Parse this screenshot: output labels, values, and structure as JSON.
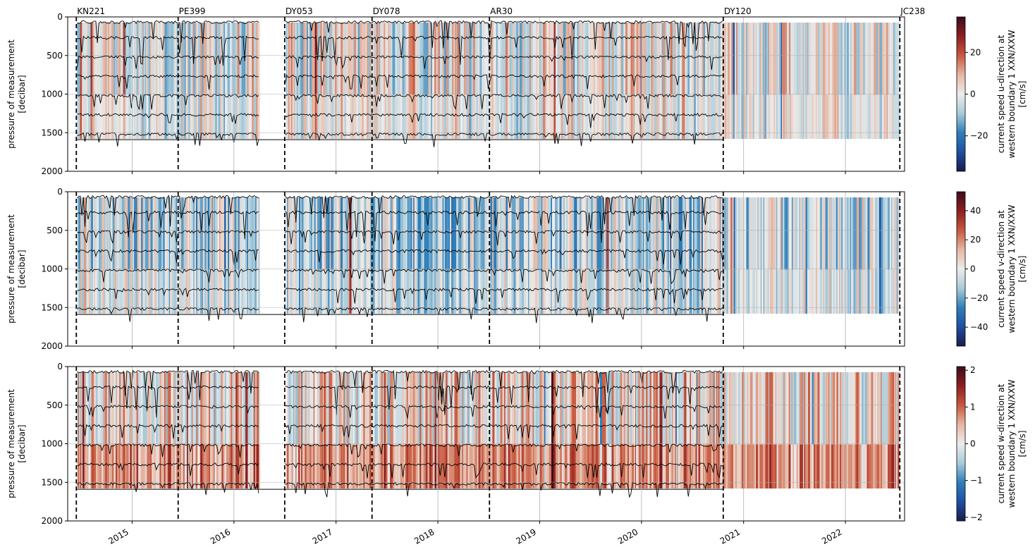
{
  "figure": {
    "x_ticks": [
      "2015",
      "2016",
      "2017",
      "2018",
      "2019",
      "2020",
      "2021",
      "2022"
    ],
    "y_label_line1": "pressure of measurement",
    "y_label_line2": "[decibar]",
    "y_ticks": [
      "0",
      "500",
      "1000",
      "1500",
      "2000"
    ],
    "cruises": [
      {
        "label": "KN221",
        "date": "2014-06-15"
      },
      {
        "label": "PE399",
        "date": "2015-06-15"
      },
      {
        "label": "DY053",
        "date": "2016-07-01"
      },
      {
        "label": "DY078",
        "date": "2017-05-10"
      },
      {
        "label": "AR30",
        "date": "2018-07-05"
      },
      {
        "label": "DY120",
        "date": "2020-10-20"
      },
      {
        "label": "JC238",
        "date": "2022-07-15"
      }
    ]
  },
  "chart_data": [
    {
      "type": "heatmap",
      "xlabel": "",
      "ylabel": "pressure of measurement [decibar]",
      "xlim": [
        "2014-05-15",
        "2022-08-01"
      ],
      "ylim": [
        2000,
        0
      ],
      "grid": true,
      "colorbar_label": [
        "current speed u-direction at",
        "western boundary 1 XXN/XXW",
        "[cm/s]"
      ],
      "colorbar_ticks": [
        20,
        0,
        -20
      ],
      "colorbar_range": [
        -37,
        37
      ],
      "colormap": [
        "#1a1b4b",
        "#1f4fa3",
        "#2e7fba",
        "#a9cbd9",
        "#ececec",
        "#e5b7a3",
        "#c8583e",
        "#8d1e22",
        "#3c0d1a"
      ],
      "instrument_depths_decibar": [
        50,
        250,
        500,
        750,
        1000,
        1250,
        1500
      ],
      "data_range_decibar": [
        75,
        1580
      ],
      "cruises": [
        "KN221",
        "PE399",
        "DY053",
        "DY078",
        "AR30",
        "DY120",
        "JC238"
      ]
    },
    {
      "type": "heatmap",
      "xlabel": "",
      "ylabel": "pressure of measurement [decibar]",
      "xlim": [
        "2014-05-15",
        "2022-08-01"
      ],
      "ylim": [
        2000,
        0
      ],
      "grid": true,
      "colorbar_label": [
        "current speed v-direction at",
        "western boundary 1 XXN/XXW",
        "[cm/s]"
      ],
      "colorbar_ticks": [
        40,
        20,
        0,
        -20,
        -40
      ],
      "colorbar_range": [
        -53,
        53
      ],
      "colormap": [
        "#1a1b4b",
        "#1f4fa3",
        "#2e7fba",
        "#a9cbd9",
        "#ececec",
        "#e5b7a3",
        "#c8583e",
        "#8d1e22",
        "#3c0d1a"
      ],
      "instrument_depths_decibar": [
        50,
        250,
        500,
        750,
        1000,
        1250,
        1500
      ],
      "data_range_decibar": [
        75,
        1580
      ],
      "cruises": [
        "KN221",
        "PE399",
        "DY053",
        "DY078",
        "AR30",
        "DY120",
        "JC238"
      ]
    },
    {
      "type": "heatmap",
      "xlabel": "",
      "ylabel": "pressure of measurement [decibar]",
      "xlim": [
        "2014-05-15",
        "2022-08-01"
      ],
      "ylim": [
        2000,
        0
      ],
      "grid": true,
      "colorbar_label": [
        "current speed w-direction at",
        "western boundary 1 XXN/XXW",
        "[cm/s]"
      ],
      "colorbar_ticks": [
        2,
        1,
        0,
        -1,
        -2
      ],
      "colorbar_range": [
        -2.1,
        2.1
      ],
      "colormap": [
        "#1a1b4b",
        "#1f4fa3",
        "#2e7fba",
        "#a9cbd9",
        "#ececec",
        "#e5b7a3",
        "#c8583e",
        "#8d1e22",
        "#3c0d1a"
      ],
      "instrument_depths_decibar": [
        50,
        250,
        500,
        750,
        1000,
        1250,
        1500
      ],
      "data_range_decibar": [
        75,
        1580
      ],
      "cruises": [
        "KN221",
        "PE399",
        "DY053",
        "DY078",
        "AR30",
        "DY120",
        "JC238"
      ]
    }
  ]
}
